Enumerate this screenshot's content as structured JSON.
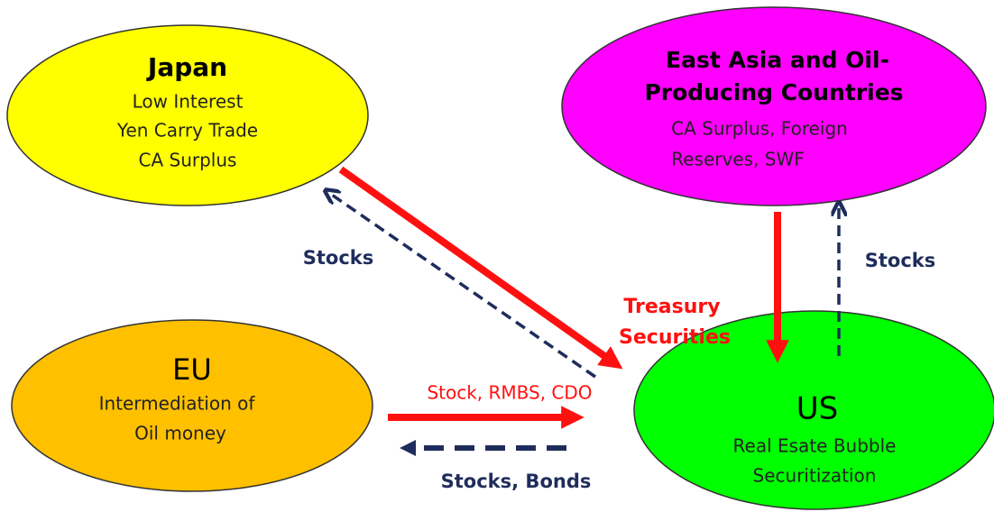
{
  "nodes": [
    {
      "title": [
        "Japan"
      ],
      "lines": [
        "Low Interest",
        "Yen Carry Trade",
        "CA Surplus"
      ]
    },
    {
      "title": [
        "East Asia and Oil-",
        "Producing Countries"
      ],
      "lines": [
        "CA Surplus, Foreign",
        "Reserves, SWF"
      ]
    },
    {
      "title": [
        "EU"
      ],
      "lines": [
        "Intermediation of",
        "Oil money"
      ]
    },
    {
      "title": [
        "US"
      ],
      "lines": [
        "Real Esate Bubble",
        "Securitization"
      ]
    }
  ],
  "labels": [
    {
      "lines": [
        "Stocks"
      ]
    },
    {
      "lines": [
        "Treasury",
        "Securities"
      ]
    },
    {
      "lines": [
        "Stocks"
      ]
    },
    {
      "lines": [
        "Stock, RMBS, CDO"
      ]
    },
    {
      "lines": [
        "Stocks, Bonds"
      ]
    }
  ]
}
